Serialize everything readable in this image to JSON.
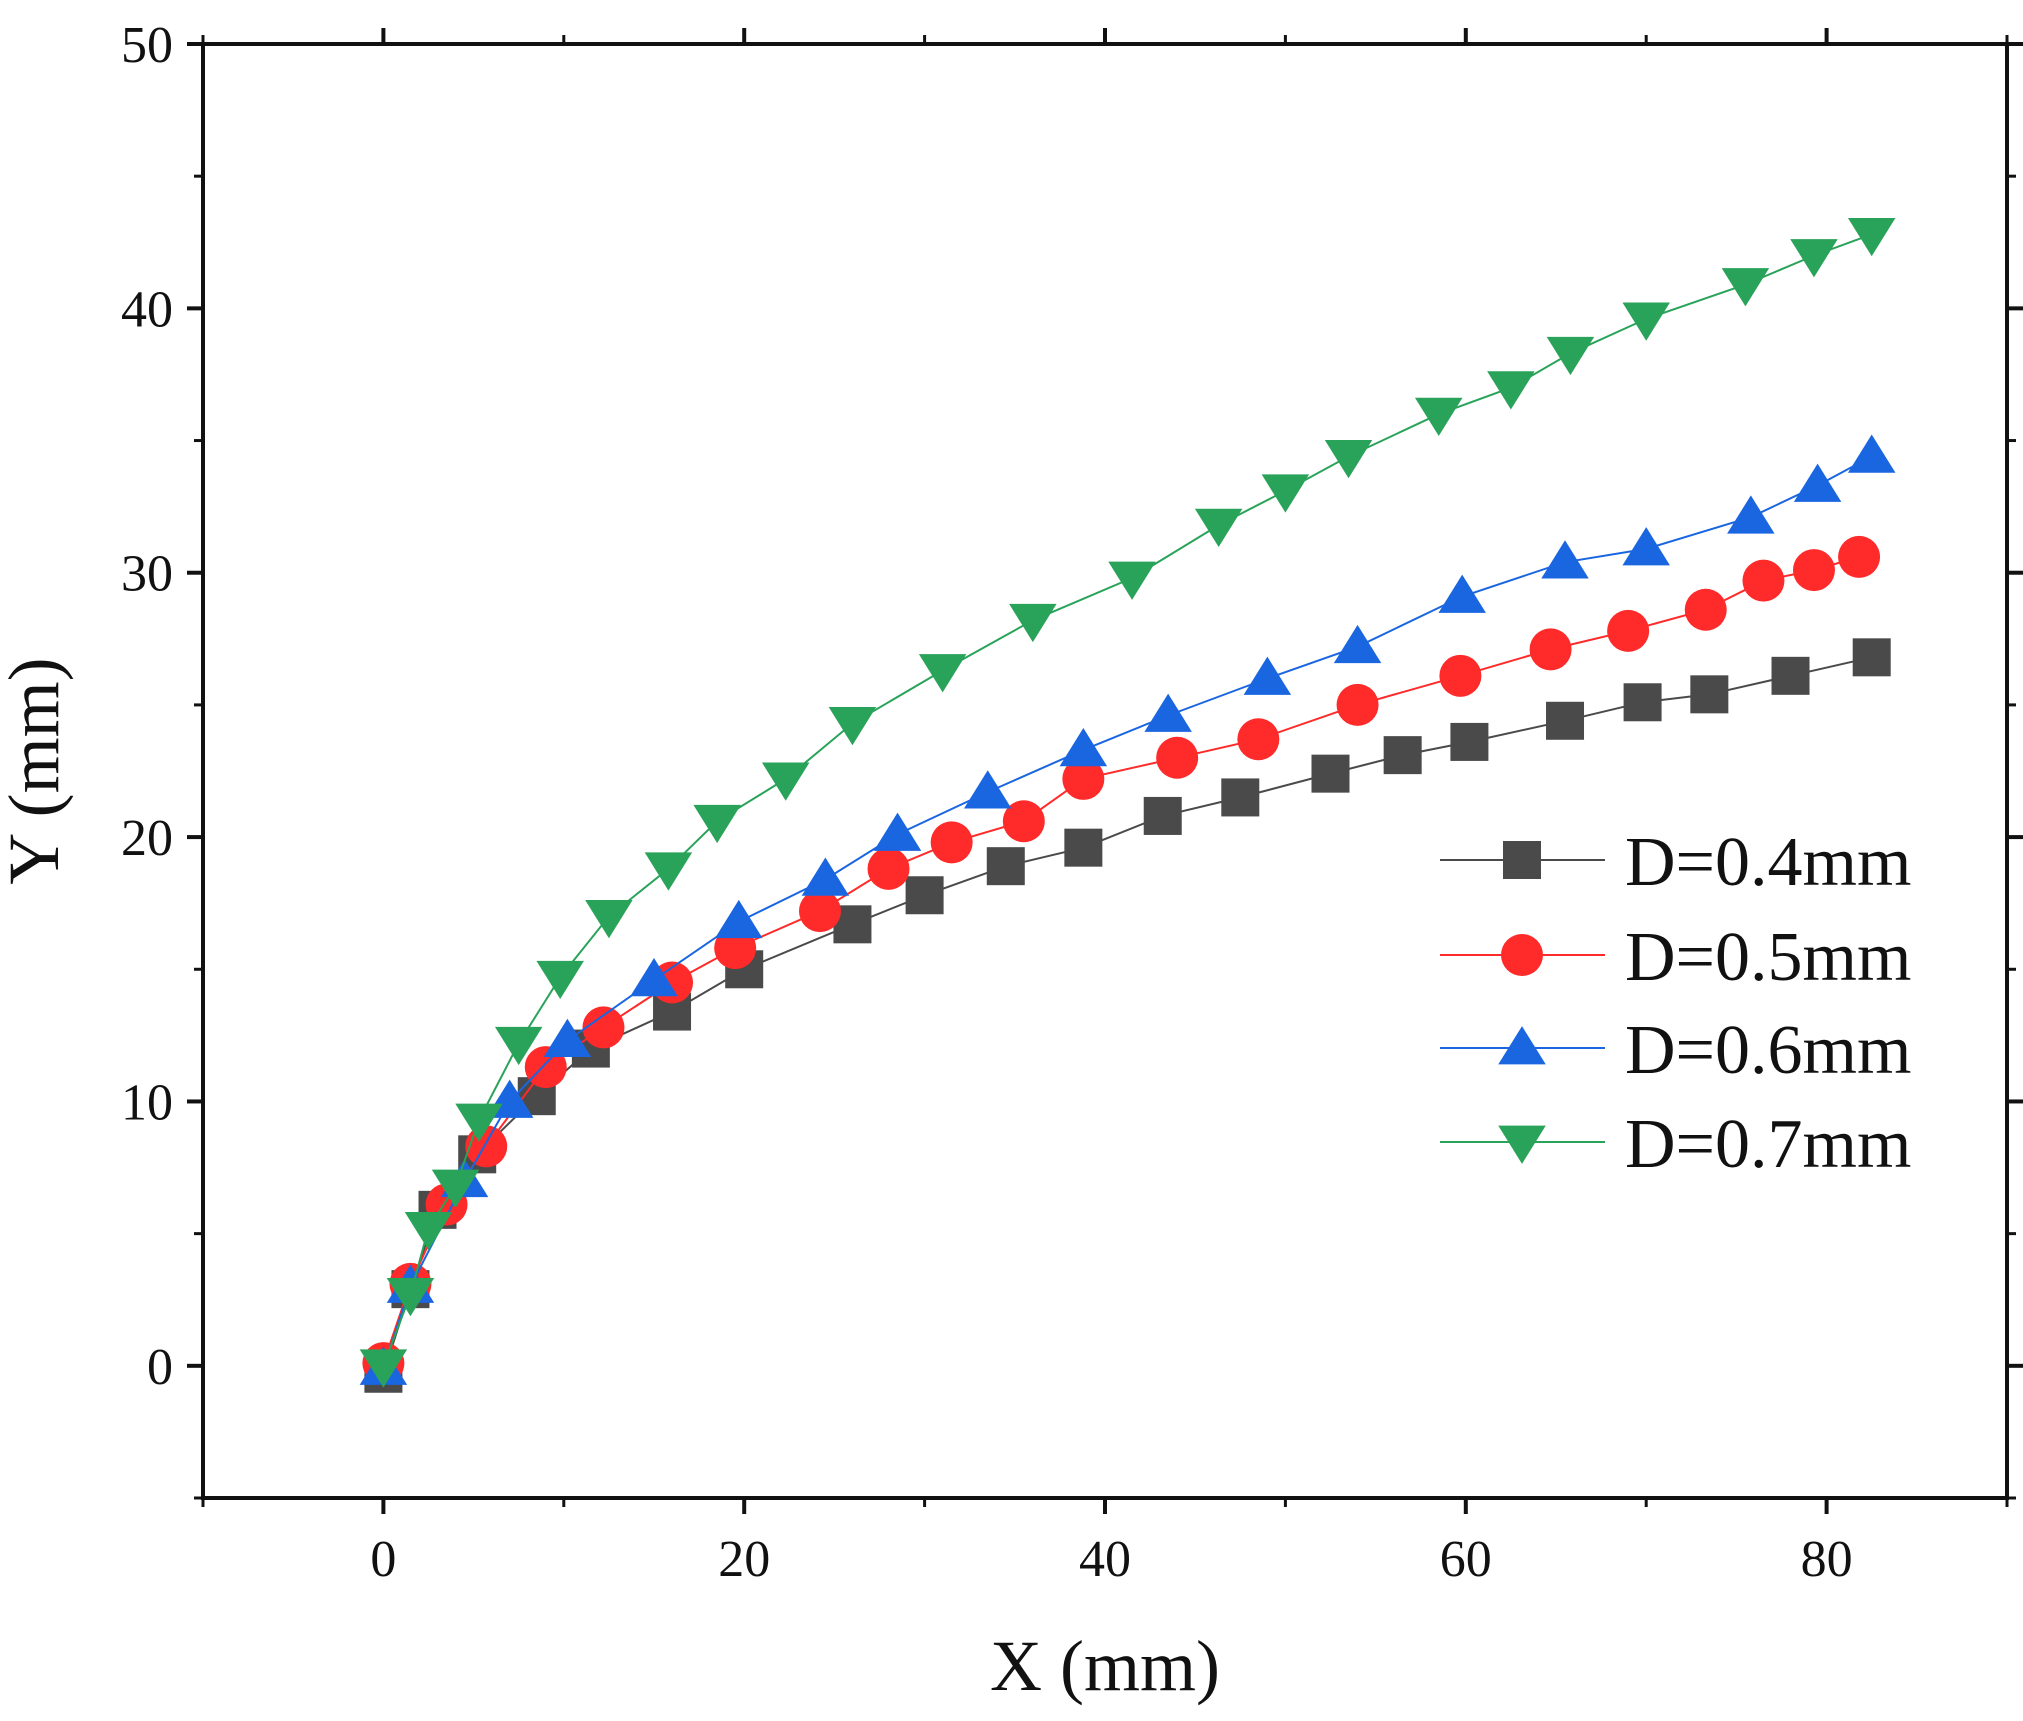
{
  "chart_data": {
    "type": "line",
    "title": "",
    "xlabel": "X (mm)",
    "ylabel": "Y (mm)",
    "xlim": [
      -10,
      90
    ],
    "ylim": [
      -5,
      50
    ],
    "xticks": [
      0,
      20,
      40,
      60,
      80
    ],
    "yticks": [
      0,
      10,
      20,
      30,
      40,
      50
    ],
    "xtick_labels": [
      "0",
      "20",
      "40",
      "60",
      "80"
    ],
    "ytick_labels": [
      "0",
      "10",
      "20",
      "30",
      "40",
      "50"
    ],
    "grid": false,
    "legend_position": "center-right",
    "series": [
      {
        "name": "D=0.4mm",
        "color": "#4a4a4a",
        "marker": "square",
        "x": [
          0,
          1.5,
          3,
          5.2,
          8.5,
          11.5,
          16,
          20,
          26,
          30,
          34.5,
          38.8,
          43.2,
          47.5,
          52.5,
          56.5,
          60.2,
          65.5,
          69.8,
          73.5,
          78,
          82.5
        ],
        "y": [
          -0.3,
          2.9,
          5.9,
          8.0,
          10.2,
          12.0,
          13.4,
          15.0,
          16.7,
          17.8,
          18.9,
          19.6,
          20.8,
          21.5,
          22.4,
          23.1,
          23.6,
          24.4,
          25.1,
          25.4,
          26.1,
          26.8
        ]
      },
      {
        "name": "D=0.5mm",
        "color": "#ff2a2a",
        "marker": "circle",
        "x": [
          0,
          1.5,
          3.5,
          5.7,
          9.0,
          12.2,
          16,
          19.5,
          24.2,
          28,
          31.5,
          35.5,
          38.8,
          44,
          48.5,
          54,
          59.7,
          64.7,
          69,
          73.3,
          76.5,
          79.3,
          81.8
        ],
        "y": [
          0.1,
          3.1,
          6.1,
          8.3,
          11.3,
          12.8,
          14.5,
          15.8,
          17.2,
          18.8,
          19.8,
          20.6,
          22.2,
          23.0,
          23.7,
          25.0,
          26.1,
          27.1,
          27.8,
          28.6,
          29.7,
          30.1,
          30.6
        ]
      },
      {
        "name": "D=0.6mm",
        "color": "#1a66e0",
        "marker": "triangle-up",
        "x": [
          0,
          1.5,
          4.5,
          7.0,
          10.2,
          15,
          19.7,
          24.5,
          28.5,
          33.5,
          38.8,
          43.5,
          49,
          54,
          59.8,
          65.5,
          70,
          75.8,
          79.5,
          82.5
        ],
        "y": [
          -0.1,
          3.0,
          7.0,
          10.0,
          12.3,
          14.6,
          16.8,
          18.4,
          20.1,
          21.7,
          23.3,
          24.6,
          26.0,
          27.2,
          29.1,
          30.4,
          30.9,
          32.1,
          33.3,
          34.4
        ]
      },
      {
        "name": "D=0.7mm",
        "color": "#2aa35a",
        "marker": "triangle-down",
        "x": [
          0,
          1.5,
          2.5,
          4.0,
          5.3,
          7.5,
          9.8,
          12.5,
          15.8,
          18.5,
          22.3,
          26,
          31,
          36,
          41.5,
          46.3,
          50,
          53.5,
          58.5,
          62.5,
          65.8,
          70,
          75.5,
          79.3,
          82.5
        ],
        "y": [
          0,
          2.7,
          5.2,
          6.8,
          9.3,
          12.2,
          14.7,
          17.0,
          18.8,
          20.6,
          22.2,
          24.3,
          26.3,
          28.2,
          29.8,
          31.8,
          33.1,
          34.4,
          36.0,
          37.0,
          38.3,
          39.6,
          40.9,
          42.0,
          42.8
        ]
      }
    ]
  }
}
